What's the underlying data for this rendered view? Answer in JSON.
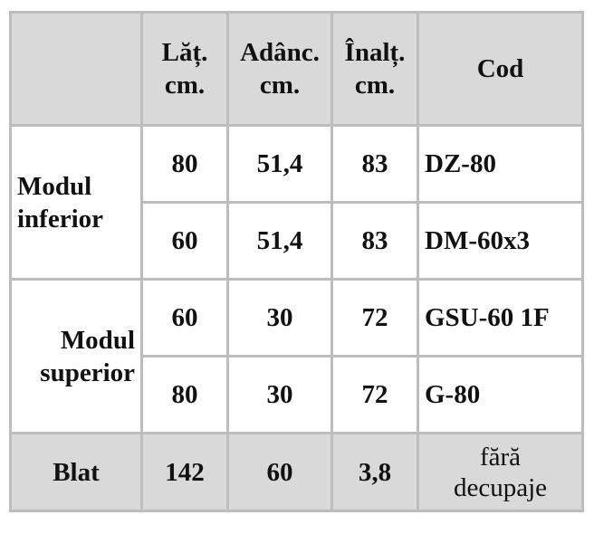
{
  "table": {
    "header": [
      [
        "Lăț.",
        "cm."
      ],
      [
        "Adânc.",
        "cm."
      ],
      [
        "Înalț.",
        "cm."
      ],
      "Cod"
    ],
    "groups": [
      {
        "label": [
          "Modul",
          "inferior"
        ],
        "rows": [
          [
            "80",
            "51,4",
            "83",
            "DZ-80"
          ],
          [
            "60",
            "51,4",
            "83",
            "DM-60x3"
          ]
        ]
      },
      {
        "label": [
          "Modul",
          "superior"
        ],
        "rows": [
          [
            "60",
            "30",
            "72",
            "GSU-60 1F"
          ],
          [
            "80",
            "30",
            "72",
            "G-80"
          ]
        ]
      }
    ],
    "footer": {
      "label": "Blat",
      "cells": [
        "142",
        "60",
        "3,8"
      ],
      "note": [
        "fără",
        "decupaje"
      ]
    }
  }
}
